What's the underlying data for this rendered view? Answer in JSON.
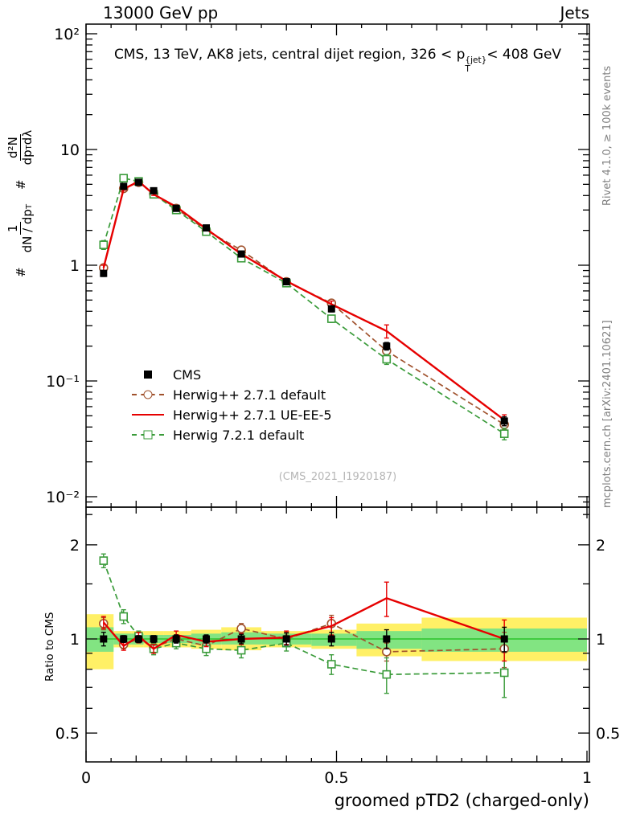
{
  "header": {
    "left": "13000 GeV pp",
    "right": "Jets"
  },
  "title": {
    "pre": "CMS, 13 TeV, AK8 jets, central dijet region, 326 < p",
    "sup": "{jet}",
    "sub": "T",
    "post": "< 408 GeV"
  },
  "ylabel": {
    "hash1": "#",
    "f1_num": "1",
    "f1_den": "dN / dp",
    "f1_den_sub": "T",
    "hash2": "#",
    "f2_num": "d²N",
    "f2_den_a": "dp",
    "f2_den_sub": "T",
    "f2_den_b": " dλ"
  },
  "ratio_label": "Ratio to CMS",
  "xlabel": "groomed pTD2 (charged-only)",
  "watermark": "(CMS_2021_I1920187)",
  "side_right_top": "Rivet 4.1.0, ≥ 100k events",
  "side_right_bottom": "mcplots.cern.ch [arXiv:2401.10621]",
  "chart_data": {
    "type": "line",
    "title": "CMS, 13 TeV, AK8 jets, central dijet region, 326 < pT{jet} < 408 GeV",
    "xlabel": "groomed pTD2 (charged-only)",
    "ylabel": "# 1/(dN/dpT) d²N/(dpT dλ)",
    "ratio_ylabel": "Ratio to CMS",
    "x_axis": {
      "min": 0,
      "max": 1,
      "ticks": [
        {
          "v": 0,
          "label": "0"
        },
        {
          "v": 0.5,
          "label": "0.5"
        },
        {
          "v": 1,
          "label": "1"
        }
      ]
    },
    "main_axis": {
      "scale": "log",
      "min": 0.008,
      "max": 120,
      "yticks": [
        {
          "v": 100,
          "label": "10²"
        },
        {
          "v": 10,
          "label": "10"
        },
        {
          "v": 1,
          "label": "1"
        },
        {
          "v": 0.1,
          "label": "10⁻¹"
        },
        {
          "v": 0.01,
          "label": "10⁻²"
        }
      ]
    },
    "ratio_axis": {
      "scale": "log",
      "min": 0.404,
      "max": 2.64,
      "yticks": [
        {
          "v": 2,
          "label": "2"
        },
        {
          "v": 1,
          "label": "1"
        },
        {
          "v": 0.5,
          "label": "0.5"
        }
      ],
      "minor": [
        0.5,
        0.6,
        0.7,
        0.8,
        0.9,
        1,
        1.5,
        2,
        2.5
      ]
    },
    "x": [
      0.035,
      0.075,
      0.105,
      0.135,
      0.18,
      0.24,
      0.31,
      0.4,
      0.49,
      0.6,
      0.835
    ],
    "series": [
      {
        "label": "CMS",
        "color": "#000000",
        "line": "none",
        "marker": "square-filled",
        "values": [
          0.85,
          4.8,
          5.2,
          4.4,
          3.1,
          2.1,
          1.25,
          0.72,
          0.42,
          0.2,
          0.045
        ],
        "errors": [
          0.05,
          0.15,
          0.15,
          0.13,
          0.09,
          0.07,
          0.05,
          0.035,
          0.025,
          0.015,
          0.004
        ],
        "ratio": [
          1,
          1,
          1,
          1,
          1,
          1,
          1,
          1,
          1,
          1,
          1
        ],
        "ratio_errors": [
          0.05,
          0.025,
          0.025,
          0.025,
          0.03,
          0.03,
          0.035,
          0.045,
          0.05,
          0.07,
          0.09
        ]
      },
      {
        "label": "Herwig++ 2.7.1 default",
        "color": "#a0522d",
        "line": "dashed",
        "marker": "circle-open",
        "values": [
          0.95,
          4.6,
          5.2,
          4.15,
          3.1,
          2.0,
          1.35,
          0.72,
          0.47,
          0.182,
          0.042
        ],
        "errors": [
          0.05,
          0.1,
          0.1,
          0.09,
          0.07,
          0.05,
          0.04,
          0.03,
          0.025,
          0.012,
          0.004
        ],
        "ratio": [
          1.12,
          0.96,
          1.0,
          0.94,
          1.0,
          0.95,
          1.08,
          1.0,
          1.12,
          0.91,
          0.93
        ],
        "ratio_errors": [
          0.05,
          0.03,
          0.03,
          0.03,
          0.03,
          0.035,
          0.04,
          0.05,
          0.07,
          0.06,
          0.12
        ]
      },
      {
        "label": "Herwig++ 2.7.1 UE-EE-5",
        "color": "#e60000",
        "line": "solid",
        "marker": "none",
        "values": [
          0.95,
          4.55,
          5.3,
          4.1,
          3.2,
          2.06,
          1.25,
          0.73,
          0.46,
          0.27,
          0.046
        ],
        "errors": [
          0.05,
          0.1,
          0.1,
          0.09,
          0.07,
          0.05,
          0.04,
          0.03,
          0.03,
          0.035,
          0.005
        ],
        "ratio": [
          1.13,
          0.95,
          1.02,
          0.93,
          1.03,
          0.98,
          1.0,
          1.01,
          1.1,
          1.35,
          1.0
        ],
        "ratio_errors": [
          0.05,
          0.03,
          0.03,
          0.03,
          0.03,
          0.035,
          0.04,
          0.05,
          0.07,
          0.17,
          0.15
        ]
      },
      {
        "label": "Herwig 7.2.1 default",
        "color": "#3a9b3a",
        "line": "dashed",
        "marker": "square-open",
        "values": [
          1.5,
          5.65,
          5.3,
          4.1,
          3.0,
          1.95,
          1.15,
          0.7,
          0.345,
          0.154,
          0.035
        ],
        "errors": [
          0.13,
          0.2,
          0.15,
          0.12,
          0.09,
          0.07,
          0.05,
          0.04,
          0.025,
          0.015,
          0.004
        ],
        "ratio": [
          1.78,
          1.18,
          1.02,
          0.93,
          0.97,
          0.93,
          0.92,
          0.97,
          0.83,
          0.77,
          0.78
        ],
        "ratio_errors": [
          0.09,
          0.06,
          0.04,
          0.04,
          0.04,
          0.045,
          0.05,
          0.055,
          0.06,
          0.1,
          0.13
        ]
      }
    ],
    "bands": {
      "yellow": {
        "color": "#fff066",
        "bins": [
          [
            0,
            0.055,
            0.8,
            1.2
          ],
          [
            0.055,
            0.09,
            0.94,
            1.06
          ],
          [
            0.09,
            0.115,
            0.94,
            1.06
          ],
          [
            0.115,
            0.155,
            0.94,
            1.06
          ],
          [
            0.155,
            0.21,
            0.94,
            1.06
          ],
          [
            0.21,
            0.27,
            0.93,
            1.07
          ],
          [
            0.27,
            0.35,
            0.92,
            1.09
          ],
          [
            0.35,
            0.45,
            0.94,
            1.06
          ],
          [
            0.45,
            0.54,
            0.93,
            1.07
          ],
          [
            0.54,
            0.67,
            0.88,
            1.12
          ],
          [
            0.67,
            1.0,
            0.85,
            1.17
          ]
        ]
      },
      "green": {
        "color": "#82e482",
        "bins": [
          [
            0,
            0.055,
            0.91,
            1.09
          ],
          [
            0.055,
            0.09,
            0.96,
            1.04
          ],
          [
            0.09,
            0.115,
            0.96,
            1.04
          ],
          [
            0.115,
            0.155,
            0.97,
            1.03
          ],
          [
            0.155,
            0.21,
            0.97,
            1.03
          ],
          [
            0.21,
            0.27,
            0.96,
            1.04
          ],
          [
            0.27,
            0.35,
            0.96,
            1.05
          ],
          [
            0.35,
            0.45,
            0.96,
            1.04
          ],
          [
            0.45,
            0.54,
            0.95,
            1.04
          ],
          [
            0.54,
            0.67,
            0.93,
            1.06
          ],
          [
            0.67,
            1.0,
            0.91,
            1.08
          ]
        ]
      }
    },
    "ref_line": {
      "v": 1,
      "color": "#00b400"
    }
  }
}
